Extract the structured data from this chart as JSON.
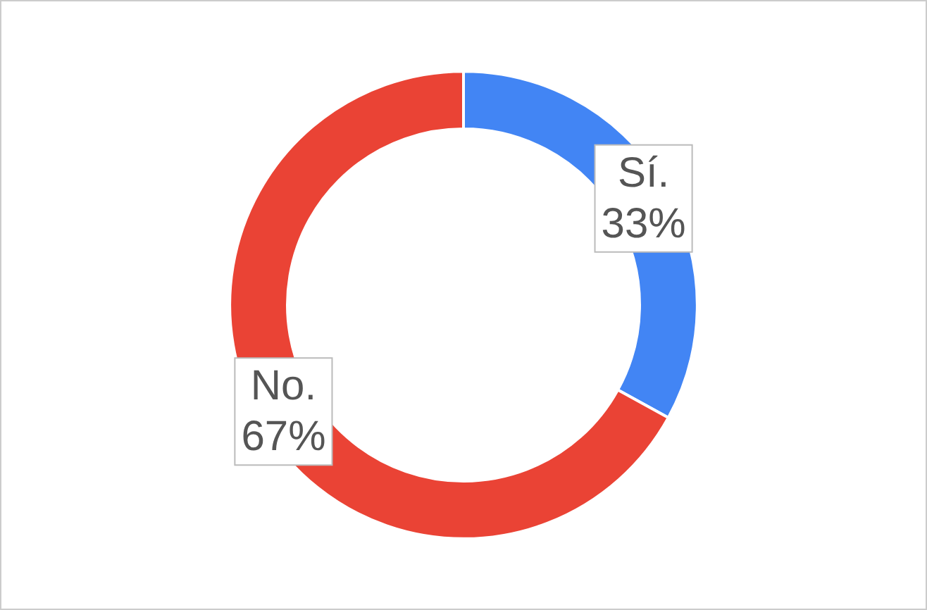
{
  "chart_data": {
    "type": "donut",
    "categories": [
      "Sí.",
      "No."
    ],
    "values": [
      33,
      67
    ],
    "colors": [
      "#4285f4",
      "#ea4335"
    ],
    "value_labels": [
      "33%",
      "67%"
    ],
    "legend": false
  }
}
